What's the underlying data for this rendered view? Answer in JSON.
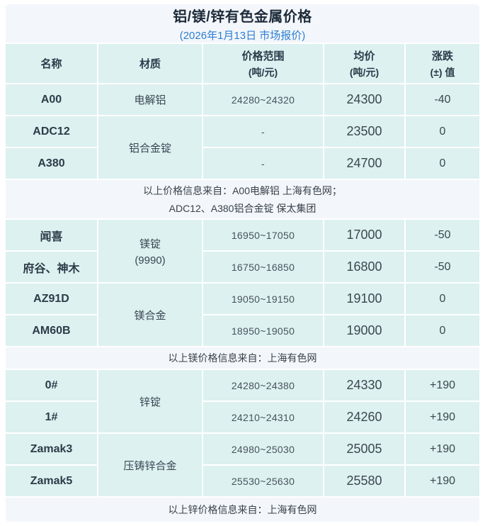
{
  "chart_data": {
    "type": "table",
    "title": "铝/镁/锌有色金属价格",
    "subtitle": "(2026年1月13日 市场报价)",
    "columns": [
      {
        "label": "名称",
        "sub": ""
      },
      {
        "label": "材质",
        "sub": ""
      },
      {
        "label": "价格范围",
        "sub": "(吨/元)"
      },
      {
        "label": "均价",
        "sub": "(吨/元)"
      },
      {
        "label": "涨跌",
        "sub": "(±) 值"
      }
    ],
    "sections": [
      {
        "metal": "铝",
        "rows": [
          {
            "name": "A00",
            "material": "电解铝",
            "range": "24280~24320",
            "avg": "24300",
            "change": "-40"
          },
          {
            "name": "ADC12",
            "material": "铝合金锭",
            "range": "-",
            "avg": "23500",
            "change": "0"
          },
          {
            "name": "A380",
            "range": "-",
            "avg": "24700",
            "change": "0"
          }
        ],
        "note_lines": [
          "以上价格信息来自：A00电解铝 上海有色网；",
          "ADC12、A380铝合金锭 保太集团"
        ]
      },
      {
        "metal": "镁",
        "rows": [
          {
            "name": "闻喜",
            "material": "镁锭",
            "material_sub": "(9990)",
            "range": "16950~17050",
            "avg": "17000",
            "change": "-50"
          },
          {
            "name": "府谷、神木",
            "range": "16750~16850",
            "avg": "16800",
            "change": "-50"
          },
          {
            "name": "AZ91D",
            "material": "镁合金",
            "range": "19050~19150",
            "avg": "19100",
            "change": "0"
          },
          {
            "name": "AM60B",
            "range": "18950~19050",
            "avg": "19000",
            "change": "0"
          }
        ],
        "note_lines": [
          "以上镁价格信息来自：上海有色网"
        ]
      },
      {
        "metal": "锌",
        "rows": [
          {
            "name": "0#",
            "material": "锌锭",
            "range": "24280~24380",
            "avg": "24330",
            "change": "+190"
          },
          {
            "name": "1#",
            "range": "24210~24310",
            "avg": "24260",
            "change": "+190"
          },
          {
            "name": "Zamak3",
            "material": "压铸锌合金",
            "range": "24980~25030",
            "avg": "25005",
            "change": "+190"
          },
          {
            "name": "Zamak5",
            "range": "25530~25630",
            "avg": "25580",
            "change": "+190"
          }
        ],
        "note_lines": [
          "以上锌价格信息来自：上海有色网"
        ]
      }
    ]
  },
  "colors": {
    "accent_blue": "#2b7fd4",
    "cell_bg": "#dcf1f0",
    "band_bg": "#f3f6fa",
    "text_dark": "#2e3b48"
  }
}
